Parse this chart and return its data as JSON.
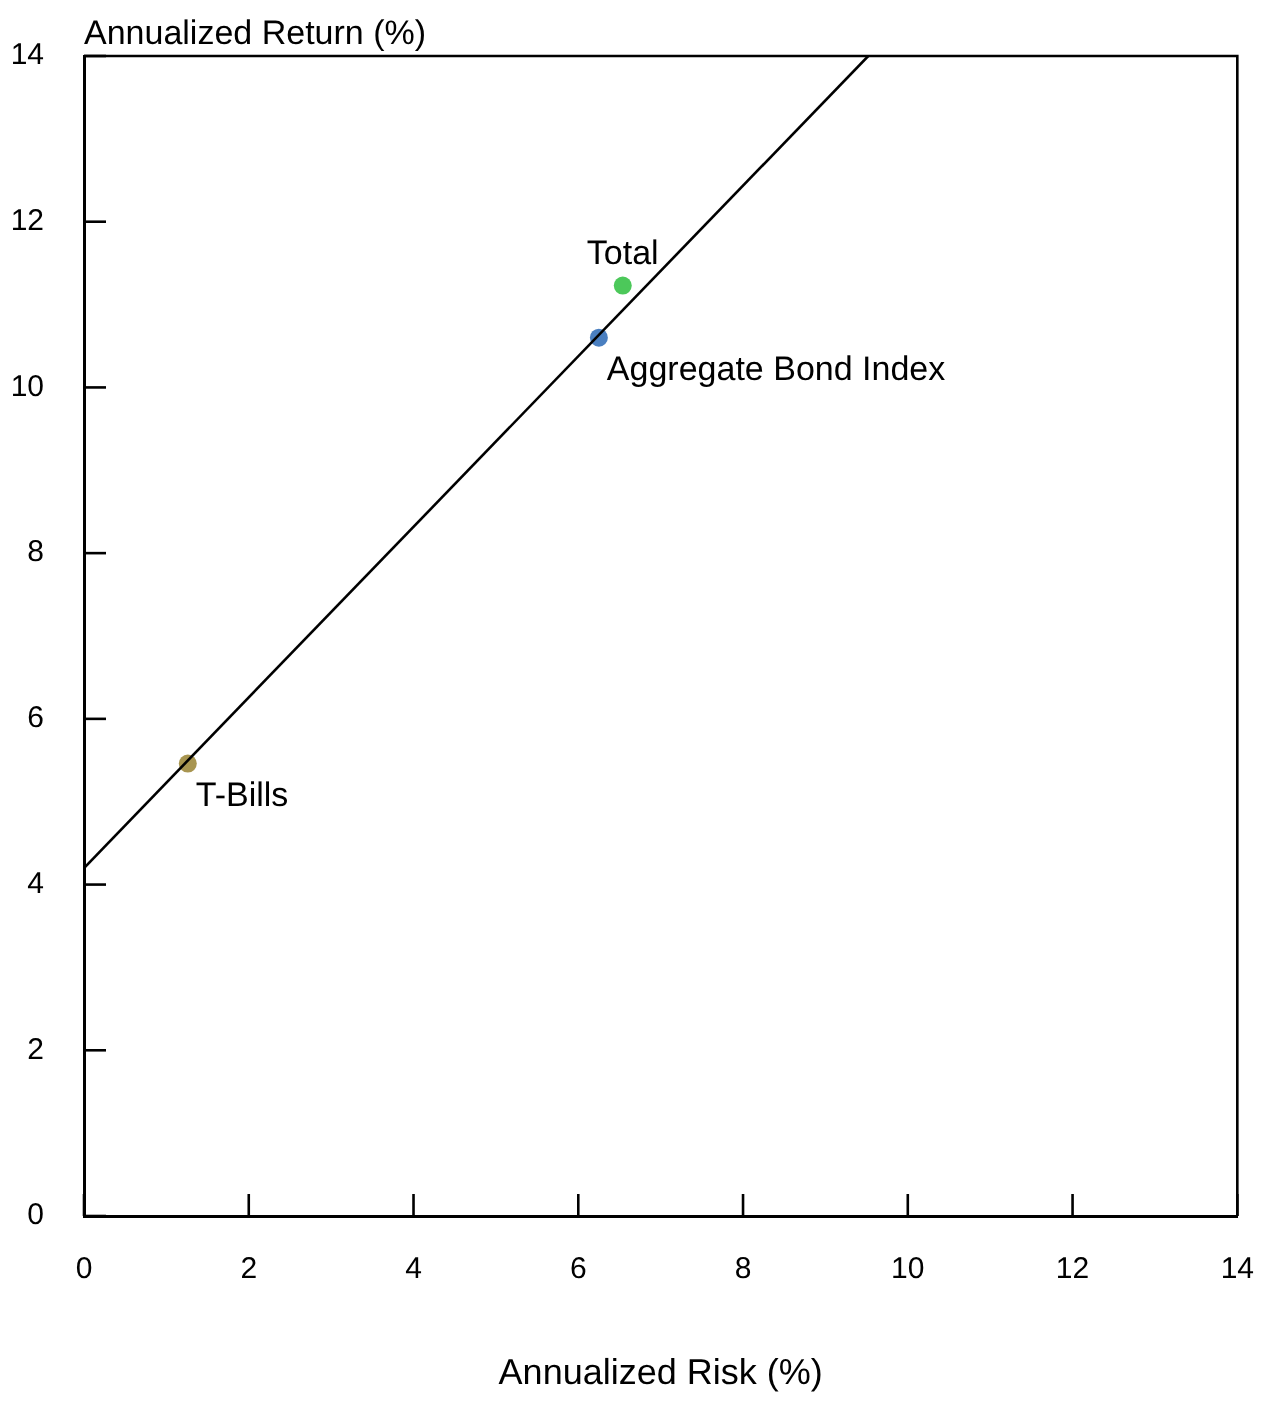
{
  "chart_data": {
    "type": "scatter",
    "xlabel": "Annualized Risk (%)",
    "ylabel": "Annualized Return (%)",
    "xlim": [
      0,
      14
    ],
    "xticks": [
      0,
      2,
      4,
      6,
      8,
      10,
      12,
      14
    ],
    "ylim": [
      0,
      14
    ],
    "yticks": [
      0,
      2,
      4,
      6,
      8,
      10,
      12,
      14
    ],
    "grid": false,
    "legend": false,
    "marker": "circle",
    "series": [
      {
        "type": "line",
        "x": [
          0,
          9.52
        ],
        "values": [
          4.2,
          14
        ],
        "color": "#000000",
        "marker": "none"
      },
      {
        "name": "T-Bills",
        "x": [
          1.26
        ],
        "values": [
          5.46
        ],
        "color": "#a89550"
      },
      {
        "name": "Aggregate Bond Index",
        "x": [
          6.25
        ],
        "values": [
          10.6
        ],
        "color": "#4a7fc0"
      },
      {
        "name": "Total",
        "x": [
          6.54
        ],
        "values": [
          11.23
        ],
        "color": "#4cc85a"
      }
    ]
  }
}
